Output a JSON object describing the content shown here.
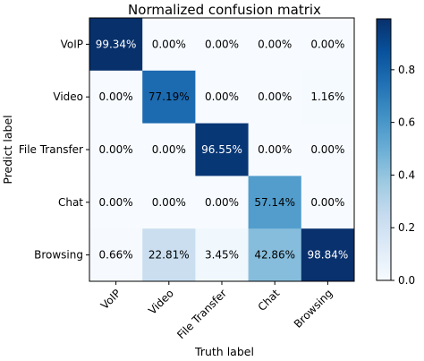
{
  "chart_data": {
    "type": "heatmap",
    "title": "Normalized confusion matrix",
    "xlabel": "Truth label",
    "ylabel": "Predict label",
    "x_categories": [
      "VoIP",
      "Video",
      "File Transfer",
      "Chat",
      "Browsing"
    ],
    "y_categories": [
      "VoIP",
      "Video",
      "File Transfer",
      "Chat",
      "Browsing"
    ],
    "values": [
      [
        0.9934,
        0.0,
        0.0,
        0.0,
        0.0
      ],
      [
        0.0,
        0.7719,
        0.0,
        0.0,
        0.0116
      ],
      [
        0.0,
        0.0,
        0.9655,
        0.0,
        0.0
      ],
      [
        0.0,
        0.0,
        0.0,
        0.5714,
        0.0
      ],
      [
        0.0066,
        0.2281,
        0.0345,
        0.4286,
        0.9884
      ]
    ],
    "cell_labels": [
      [
        "99.34%",
        "0.00%",
        "0.00%",
        "0.00%",
        "0.00%"
      ],
      [
        "0.00%",
        "77.19%",
        "0.00%",
        "0.00%",
        "1.16%"
      ],
      [
        "0.00%",
        "0.00%",
        "96.55%",
        "0.00%",
        "0.00%"
      ],
      [
        "0.00%",
        "0.00%",
        "0.00%",
        "57.14%",
        "0.00%"
      ],
      [
        "0.66%",
        "22.81%",
        "3.45%",
        "42.86%",
        "98.84%"
      ]
    ],
    "colormap": "Blues",
    "colorbar": {
      "range": [
        0.0,
        0.9934
      ],
      "ticks": [
        "0.0",
        "0.2",
        "0.4",
        "0.6",
        "0.8"
      ],
      "tick_values": [
        0.0,
        0.2,
        0.4,
        0.6,
        0.8
      ]
    },
    "grid": false,
    "x_tick_rotation_deg": 45
  }
}
